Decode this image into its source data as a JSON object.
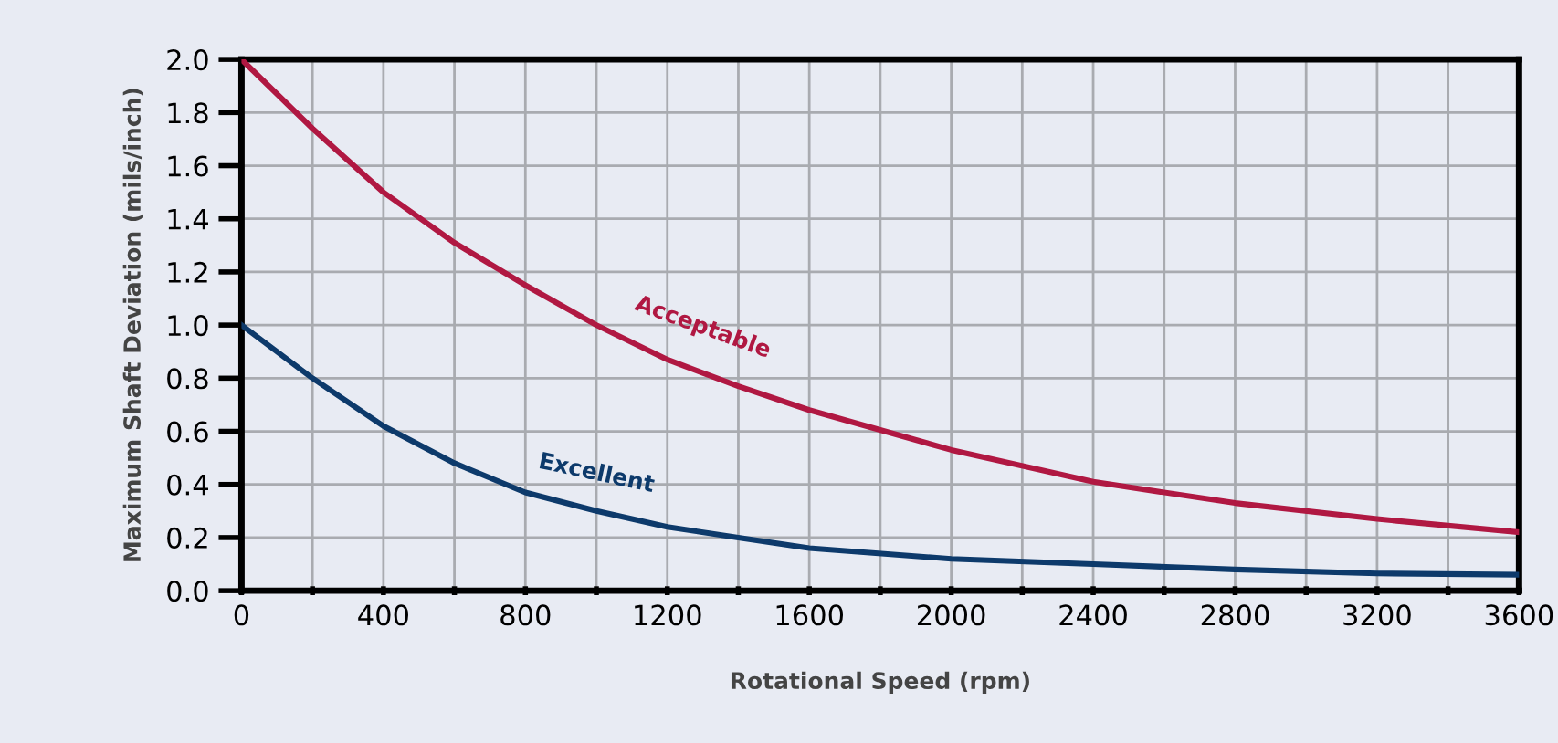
{
  "chart_data": {
    "type": "line",
    "xlabel": "Rotational Speed (rpm)",
    "ylabel": "Maximum Shaft Deviation (mils/inch)",
    "x": [
      0,
      200,
      400,
      600,
      800,
      1000,
      1200,
      1400,
      1600,
      2000,
      2400,
      2800,
      3200,
      3600
    ],
    "series": [
      {
        "name": "Acceptable",
        "color": "#b01842",
        "values": [
          2.0,
          1.74,
          1.5,
          1.31,
          1.15,
          1.0,
          0.87,
          0.77,
          0.68,
          0.53,
          0.41,
          0.33,
          0.27,
          0.22
        ]
      },
      {
        "name": "Excellent",
        "color": "#0d3a6b",
        "values": [
          1.0,
          0.8,
          0.62,
          0.48,
          0.37,
          0.3,
          0.24,
          0.2,
          0.16,
          0.12,
          0.1,
          0.08,
          0.065,
          0.06
        ]
      }
    ],
    "xlim": [
      0,
      3600
    ],
    "ylim": [
      0,
      2.0
    ],
    "xticks": [
      0,
      {
        "value": 200,
        "label": null
      },
      400,
      {
        "value": 600,
        "label": null
      },
      800,
      {
        "value": 1000,
        "label": null
      },
      1200,
      {
        "value": 1400,
        "label": null
      },
      1600,
      {
        "value": 1800,
        "label": null
      },
      2000,
      {
        "value": 2200,
        "label": null
      },
      2400,
      {
        "value": 2600,
        "label": null
      },
      2800,
      {
        "value": 3000,
        "label": null
      },
      3200,
      {
        "value": 3400,
        "label": null
      },
      3600
    ],
    "yticks": [
      {
        "value": 0,
        "label": "0.0"
      },
      0.2,
      0.4,
      0.6,
      0.8,
      {
        "value": 1.0,
        "label": "1.0"
      },
      1.2,
      1.4,
      1.6,
      1.8,
      {
        "value": 2.0,
        "label": "2.0"
      }
    ],
    "grid": true,
    "legend": false,
    "marker": "none",
    "line_style": "solid"
  }
}
